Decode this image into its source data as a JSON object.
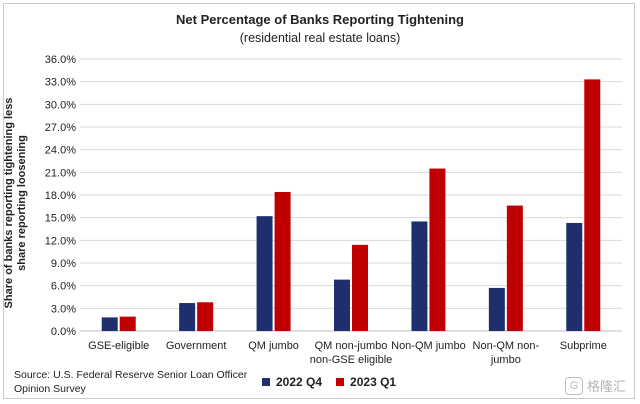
{
  "chart_data": {
    "type": "bar",
    "title": "Net Percentage of Banks Reporting Tightening",
    "subtitle": "(residential real estate loans)",
    "ylabel_lines": [
      "Share of banks reporting tightening less",
      "share reporting loosening"
    ],
    "xlabel": "",
    "ylim": [
      0,
      36
    ],
    "yticks": [
      "0.0%",
      "3.0%",
      "6.0%",
      "9.0%",
      "12.0%",
      "15.0%",
      "18.0%",
      "21.0%",
      "24.0%",
      "27.0%",
      "30.0%",
      "33.0%",
      "36.0%"
    ],
    "categories": [
      [
        "GSE-eligible"
      ],
      [
        "Government"
      ],
      [
        "QM jumbo"
      ],
      [
        "QM non-jumbo",
        "non-GSE eligible"
      ],
      [
        "Non-QM jumbo"
      ],
      [
        "Non-QM non-",
        "jumbo"
      ],
      [
        "Subprime"
      ]
    ],
    "series": [
      {
        "name": "2022 Q4",
        "color": "#1f2f6e",
        "values": [
          1.8,
          3.7,
          15.2,
          6.8,
          14.5,
          5.7,
          14.3
        ]
      },
      {
        "name": "2023 Q1",
        "color": "#c00000",
        "values": [
          1.9,
          3.8,
          18.4,
          11.4,
          21.5,
          16.6,
          33.3
        ]
      }
    ],
    "grid": "horizontal",
    "legend_placement": "bottom"
  },
  "source_text": "Source: U.S. Federal Reserve Senior Loan Officer Opinion Survey",
  "watermark": {
    "icon": "G",
    "text": "格隆汇"
  }
}
